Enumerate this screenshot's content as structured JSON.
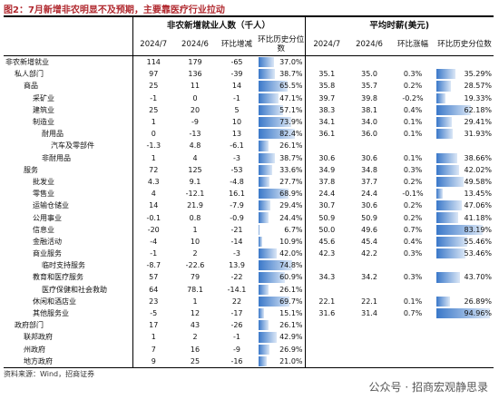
{
  "header": {
    "title": "图2：7月新增非农明显不及预期，主要靠医疗行业拉动"
  },
  "table": {
    "groups": [
      "非农新增就业人数（千人）",
      "平均时薪(美元)"
    ],
    "columns": [
      "2024/7",
      "2024/6",
      "环比增减",
      "环比历史分位数",
      "2024/7",
      "2024/6",
      "环比涨幅",
      "环比历史分位数"
    ],
    "rows": [
      {
        "name": "非农新增就业",
        "jul": "114",
        "jun": "179",
        "chg": "-65",
        "pct": 37.0,
        "pct_label": "37.0%",
        "wage": null
      },
      {
        "name": "私人部门",
        "jul": "97",
        "jun": "136",
        "chg": "-39",
        "pct": 38.7,
        "pct_label": "38.7%",
        "wage": {
          "jul": "35.1",
          "jun": "35.0",
          "chg": "0.3%",
          "pct": 35.29,
          "pct_label": "35.29%"
        }
      },
      {
        "name": "商品",
        "jul": "25",
        "jun": "11",
        "chg": "14",
        "pct": 65.5,
        "pct_label": "65.5%",
        "wage": {
          "jul": "35.8",
          "jun": "35.7",
          "chg": "0.2%",
          "pct": 28.57,
          "pct_label": "28.57%"
        }
      },
      {
        "name": "采矿业",
        "jul": "-1",
        "jun": "0",
        "chg": "-1",
        "pct": 47.1,
        "pct_label": "47.1%",
        "wage": {
          "jul": "39.7",
          "jun": "39.8",
          "chg": "-0.2%",
          "pct": 19.33,
          "pct_label": "19.33%"
        }
      },
      {
        "name": "建筑业",
        "jul": "25",
        "jun": "20",
        "chg": "5",
        "pct": 57.1,
        "pct_label": "57.1%",
        "wage": {
          "jul": "38.3",
          "jun": "38.1",
          "chg": "0.4%",
          "pct": 62.18,
          "pct_label": "62.18%"
        }
      },
      {
        "name": "制造业",
        "jul": "1",
        "jun": "-9",
        "chg": "10",
        "pct": 73.9,
        "pct_label": "73.9%",
        "wage": {
          "jul": "34.1",
          "jun": "34.0",
          "chg": "0.1%",
          "pct": 29.41,
          "pct_label": "29.41%"
        }
      },
      {
        "name": "耐用品",
        "jul": "0",
        "jun": "-13",
        "chg": "13",
        "pct": 82.4,
        "pct_label": "82.4%",
        "wage": {
          "jul": "36.1",
          "jun": "36.0",
          "chg": "0.1%",
          "pct": 31.93,
          "pct_label": "31.93%"
        }
      },
      {
        "name": "汽车及零部件",
        "jul": "-1.3",
        "jun": "4.8",
        "chg": "-6.1",
        "pct": 26.1,
        "pct_label": "26.1%",
        "wage": null
      },
      {
        "name": "非耐用品",
        "jul": "1",
        "jun": "4",
        "chg": "-3",
        "pct": 38.7,
        "pct_label": "38.7%",
        "wage": {
          "jul": "30.6",
          "jun": "30.6",
          "chg": "0.1%",
          "pct": 38.66,
          "pct_label": "38.66%"
        }
      },
      {
        "name": "服务",
        "jul": "72",
        "jun": "125",
        "chg": "-53",
        "pct": 33.6,
        "pct_label": "33.6%",
        "wage": {
          "jul": "34.9",
          "jun": "34.8",
          "chg": "0.3%",
          "pct": 42.02,
          "pct_label": "42.02%"
        }
      },
      {
        "name": "批发业",
        "jul": "4.3",
        "jun": "9.1",
        "chg": "-4.8",
        "pct": 27.7,
        "pct_label": "27.7%",
        "wage": {
          "jul": "37.8",
          "jun": "37.7",
          "chg": "0.2%",
          "pct": 49.58,
          "pct_label": "49.58%"
        }
      },
      {
        "name": "零售业",
        "jul": "4",
        "jun": "-12.1",
        "chg": "16.1",
        "pct": 68.9,
        "pct_label": "68.9%",
        "wage": {
          "jul": "24.4",
          "jun": "24.4",
          "chg": "-0.1%",
          "pct": 13.45,
          "pct_label": "13.45%"
        }
      },
      {
        "name": "运输仓储业",
        "jul": "14",
        "jun": "21.9",
        "chg": "-7.9",
        "pct": 29.4,
        "pct_label": "29.4%",
        "wage": {
          "jul": "30.7",
          "jun": "30.6",
          "chg": "0.2%",
          "pct": 47.06,
          "pct_label": "47.06%"
        }
      },
      {
        "name": "公用事业",
        "jul": "-0.1",
        "jun": "0.8",
        "chg": "-0.9",
        "pct": 24.4,
        "pct_label": "24.4%",
        "wage": {
          "jul": "50.9",
          "jun": "50.9",
          "chg": "0.2%",
          "pct": 41.18,
          "pct_label": "41.18%"
        }
      },
      {
        "name": "信息业",
        "jul": "-20",
        "jun": "1",
        "chg": "-21",
        "pct": 6.7,
        "pct_label": "6.7%",
        "wage": {
          "jul": "50.0",
          "jun": "49.6",
          "chg": "0.7%",
          "pct": 83.19,
          "pct_label": "83.19%"
        }
      },
      {
        "name": "金融活动",
        "jul": "-4",
        "jun": "10",
        "chg": "-14",
        "pct": 10.9,
        "pct_label": "10.9%",
        "wage": {
          "jul": "45.6",
          "jun": "45.4",
          "chg": "0.4%",
          "pct": 55.46,
          "pct_label": "55.46%"
        }
      },
      {
        "name": "商业服务",
        "jul": "-1",
        "jun": "2",
        "chg": "-3",
        "pct": 42.0,
        "pct_label": "42.0%",
        "wage": {
          "jul": "42.3",
          "jun": "42.2",
          "chg": "0.3%",
          "pct": 53.46,
          "pct_label": "53.46%"
        }
      },
      {
        "name": "临时支持服务",
        "jul": "-8.7",
        "jun": "-22.6",
        "chg": "13.9",
        "pct": 74.8,
        "pct_label": "74.8%",
        "wage": null
      },
      {
        "name": "教育和医疗服务",
        "jul": "57",
        "jun": "79",
        "chg": "-22",
        "pct": 60.9,
        "pct_label": "60.9%",
        "wage": {
          "jul": "34.3",
          "jun": "34.2",
          "chg": "0.3%",
          "pct": 43.7,
          "pct_label": "43.70%"
        }
      },
      {
        "name": "医疗保健和社会救助",
        "jul": "64",
        "jun": "78.1",
        "chg": "-14.1",
        "pct": 26.1,
        "pct_label": "26.1%",
        "wage": null
      },
      {
        "name": "休闲和酒店业",
        "jul": "23",
        "jun": "1",
        "chg": "22",
        "pct": 69.7,
        "pct_label": "69.7%",
        "wage": {
          "jul": "22.1",
          "jun": "22.1",
          "chg": "0.1%",
          "pct": 26.89,
          "pct_label": "26.89%"
        }
      },
      {
        "name": "其他服务业",
        "jul": "-5",
        "jun": "12",
        "chg": "-17",
        "pct": 15.1,
        "pct_label": "15.1%",
        "wage": {
          "jul": "31.6",
          "jun": "31.4",
          "chg": "0.7%",
          "pct": 94.96,
          "pct_label": "94.96%"
        }
      },
      {
        "name": "政府部门",
        "jul": "17",
        "jun": "43",
        "chg": "-26",
        "pct": 26.1,
        "pct_label": "26.1%",
        "wage": null
      },
      {
        "name": "联邦政府",
        "jul": "1",
        "jun": "2",
        "chg": "-1",
        "pct": 42.9,
        "pct_label": "42.9%",
        "wage": null
      },
      {
        "name": "州政府",
        "jul": "7",
        "jun": "16",
        "chg": "-9",
        "pct": 26.9,
        "pct_label": "26.9%",
        "wage": null
      },
      {
        "name": "地方政府",
        "jul": "9",
        "jun": "25",
        "chg": "-16",
        "pct": 21.0,
        "pct_label": "21.0%",
        "wage": null
      }
    ]
  },
  "footer": {
    "source": "资料来源：Wind，招商证券",
    "watermark": "公众号 · 招商宏观静思录"
  }
}
